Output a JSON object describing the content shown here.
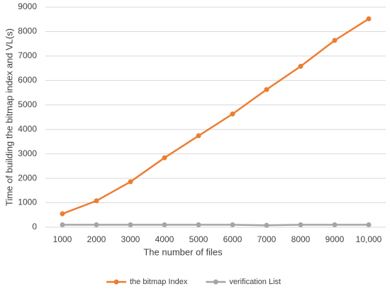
{
  "chart_data": {
    "type": "line",
    "x_label": "The number of  files",
    "y_label": "Time of building the bitmap index and VL(s)",
    "categories": [
      "1000",
      "2000",
      "3000",
      "4000",
      "5000",
      "6000",
      "7000",
      "8000",
      "9000",
      "10,000"
    ],
    "series": [
      {
        "name": "the bitmap Index",
        "color": "#ed7d31",
        "values": [
          550,
          1080,
          1860,
          2840,
          3740,
          4630,
          5630,
          6580,
          7640,
          8520
        ]
      },
      {
        "name": "verification List",
        "color": "#a5a5a5",
        "values": [
          100,
          100,
          100,
          100,
          100,
          100,
          80,
          100,
          100,
          100
        ]
      }
    ],
    "ylim": [
      0,
      9000
    ],
    "yticks": [
      0,
      1000,
      2000,
      3000,
      4000,
      5000,
      6000,
      7000,
      8000,
      9000
    ],
    "grid": true,
    "legend": "bottom"
  }
}
